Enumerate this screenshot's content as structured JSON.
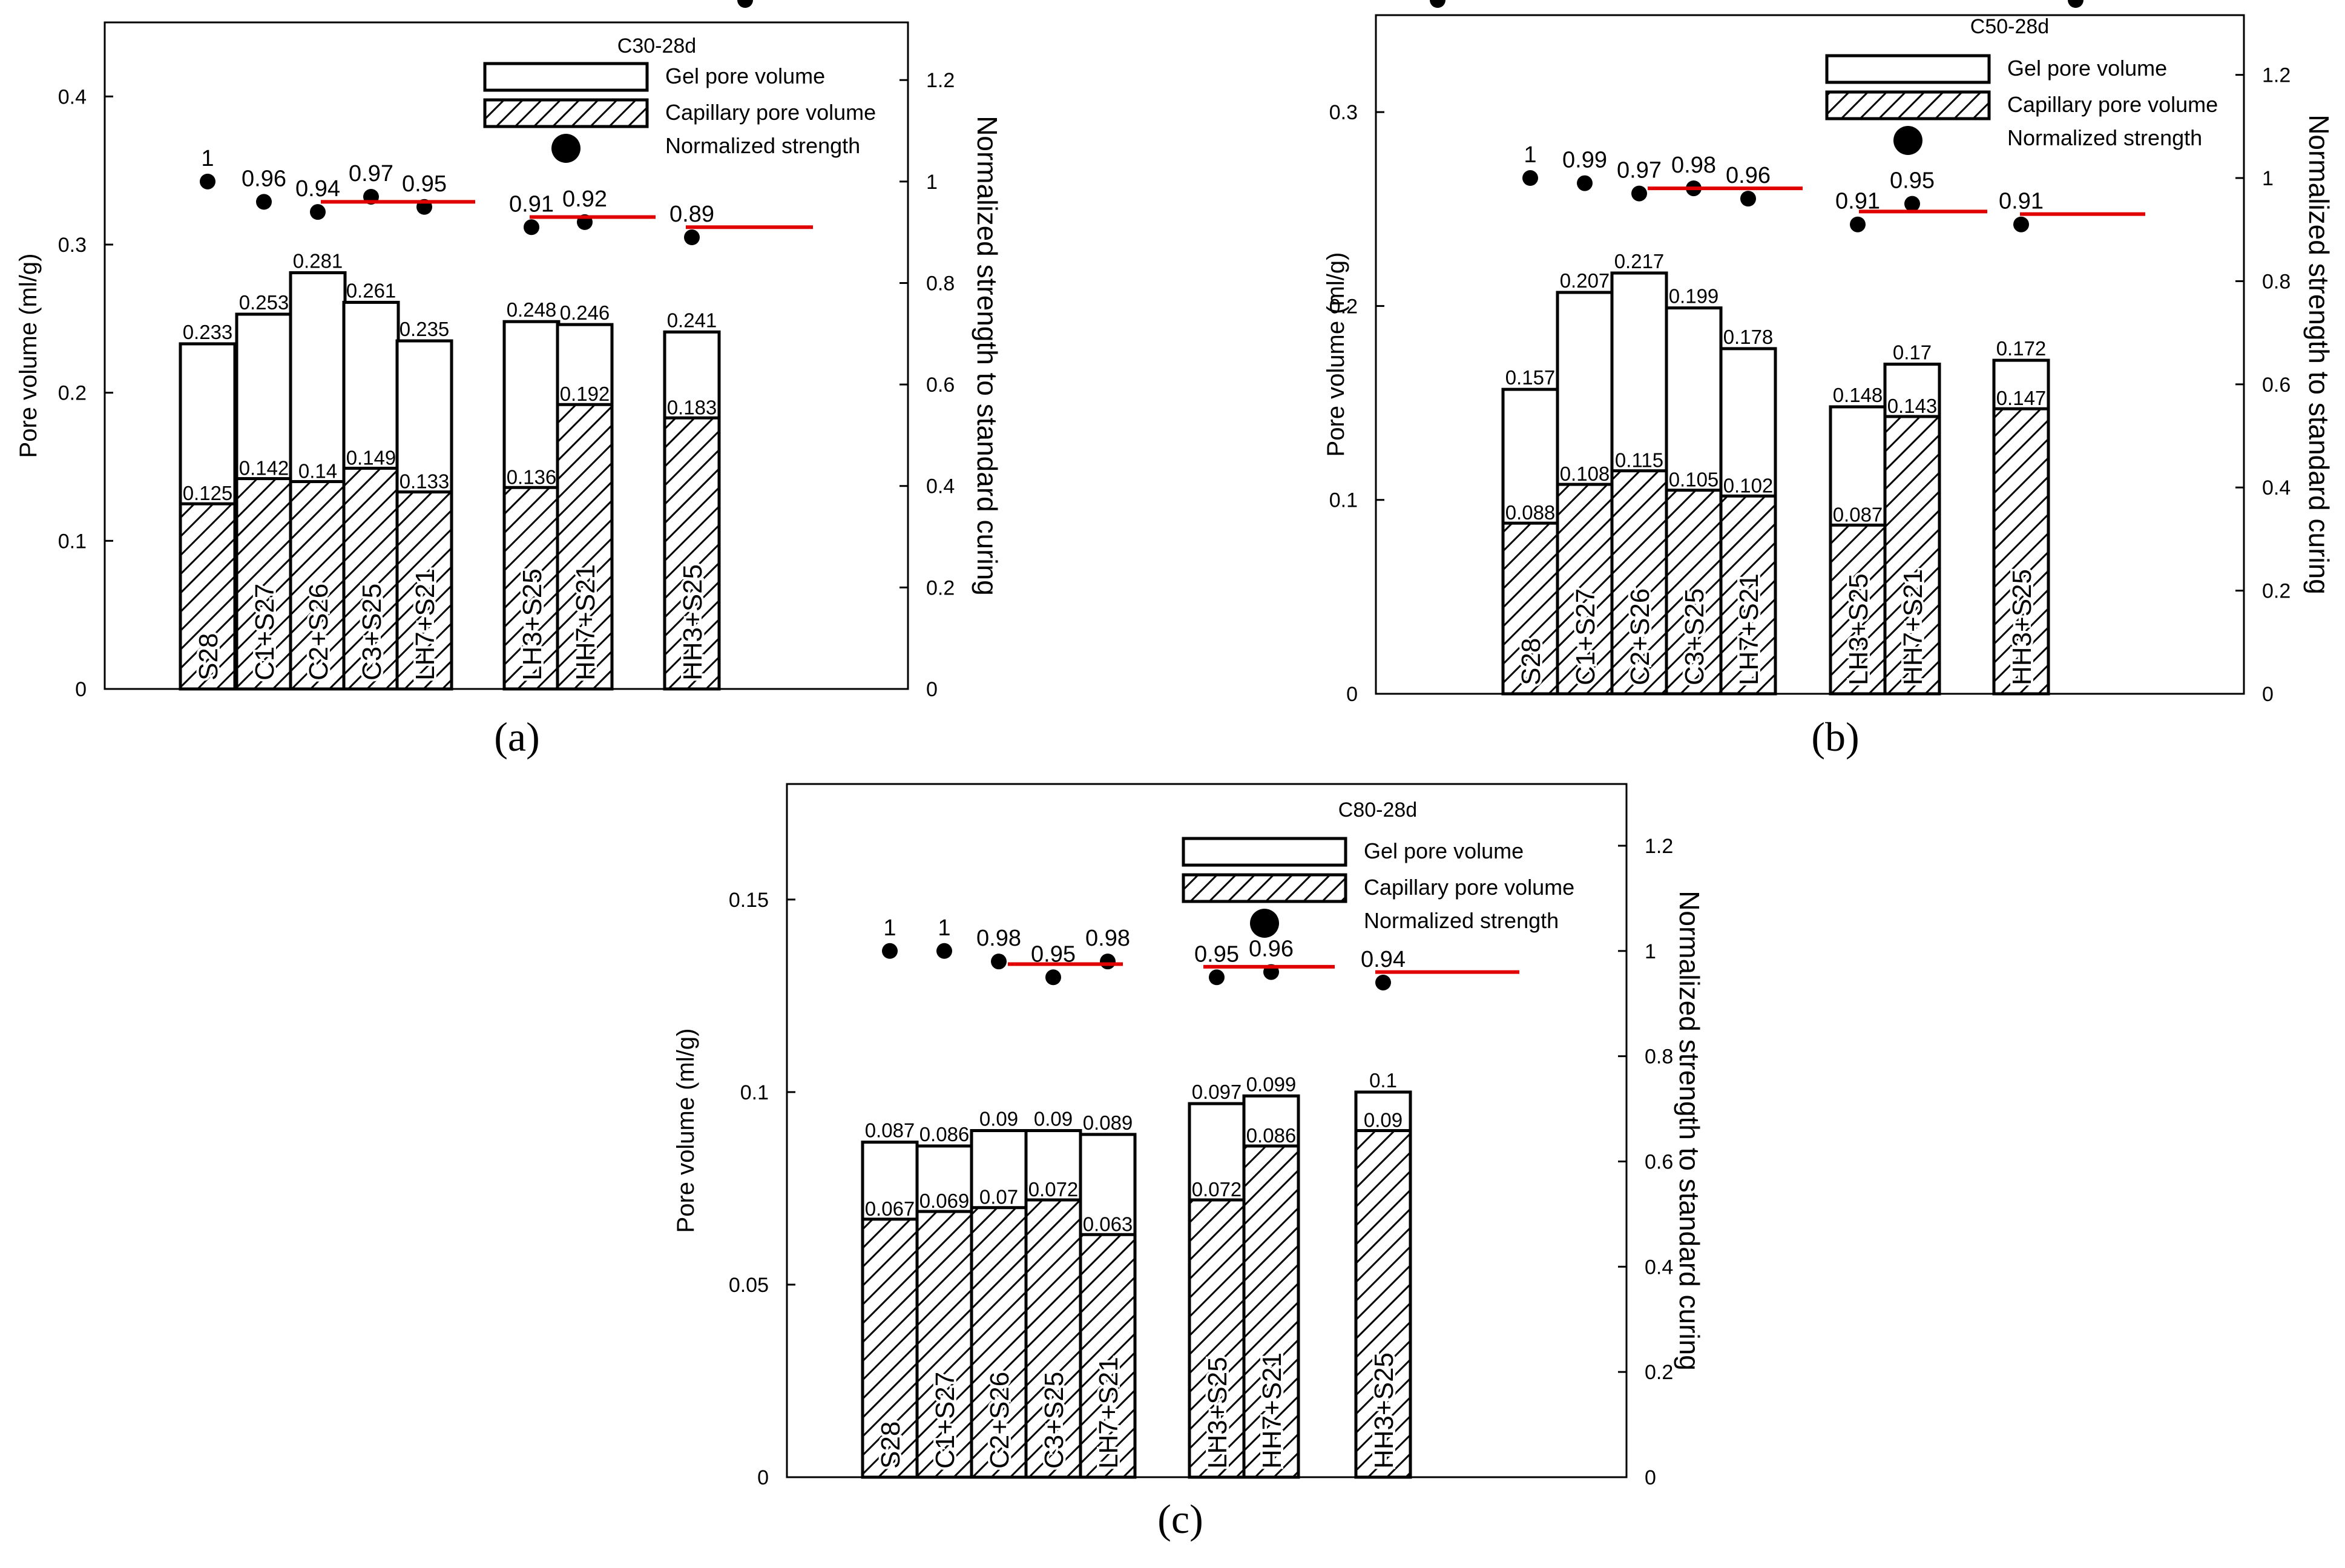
{
  "legend": {
    "gel": "Gel pore volume",
    "capillary": "Capillary pore volume",
    "strength": "Normalized strength"
  },
  "colors": {
    "line": "#e00000",
    "bar_stroke": "#000000",
    "dot": "#000000",
    "bg": "#ffffff"
  },
  "chart_data": [
    {
      "type": "bar",
      "panel": "(a)",
      "title": "C30-28d",
      "ylabel": "Pore volume (ml/g)",
      "y2label": "Normalized strength to standard curing",
      "ylim": [
        0,
        0.45
      ],
      "y2lim": [
        0,
        1.3136
      ],
      "yticks": [
        0,
        0.1,
        0.2,
        0.3,
        0.4
      ],
      "yticklabels": [
        "0",
        "0.1",
        "0.2",
        "0.3",
        "0.4"
      ],
      "y2ticks": [
        0,
        0.2,
        0.4,
        0.6,
        0.8,
        1,
        1.2
      ],
      "y2ticklabels": [
        "0",
        "0.2",
        "0.4",
        "0.6",
        "0.8",
        "1",
        "1.2"
      ],
      "categories": [
        "S28",
        "C1+S27",
        "C2+S26",
        "C3+S25",
        "LH7+S21",
        "LH3+S25",
        "HH7+S21",
        "HH3+S25"
      ],
      "groups": [
        [
          0
        ],
        [
          1,
          2,
          3
        ],
        [
          4,
          5
        ],
        [
          6,
          7
        ]
      ],
      "series": [
        {
          "name": "Gel pore volume",
          "values": [
            0.233,
            0.253,
            0.281,
            0.261,
            0.235,
            0.248,
            0.246,
            0.241
          ],
          "labels": [
            "0.233",
            "0.253",
            "0.281",
            "0.261",
            "0.235",
            "0.248",
            "0.246",
            "0.241"
          ]
        },
        {
          "name": "Capillary pore volume",
          "values": [
            0.125,
            0.142,
            0.14,
            0.149,
            0.133,
            0.136,
            0.192,
            0.183
          ],
          "labels": [
            "0.125",
            "0.142",
            "0.14",
            "0.149",
            "0.133",
            "0.136",
            "0.192",
            "0.183"
          ]
        },
        {
          "name": "Normalized strength",
          "values": [
            1,
            0.96,
            0.94,
            0.97,
            0.95,
            0.91,
            0.92,
            0.89
          ],
          "labels": [
            "1",
            "0.96",
            "0.94",
            "0.97",
            "0.95",
            "0.91",
            "0.92",
            "0.89"
          ]
        }
      ],
      "group_lines": [
        0.96,
        0.93,
        0.91
      ]
    },
    {
      "type": "bar",
      "panel": "(b)",
      "title": "C50-28d",
      "ylabel": "Pore volume (ml/g)",
      "y2label": "Normalized strength to standard curing",
      "ylim": [
        0,
        0.35
      ],
      "y2lim": [
        0,
        1.3158
      ],
      "yticks": [
        0,
        0.1,
        0.2,
        0.3
      ],
      "yticklabels": [
        "0",
        "0.1",
        "0.2",
        "0.3"
      ],
      "y2ticks": [
        0,
        0.2,
        0.4,
        0.6,
        0.8,
        1,
        1.2
      ],
      "y2ticklabels": [
        "0",
        "0.2",
        "0.4",
        "0.6",
        "0.8",
        "1",
        "1.2"
      ],
      "categories": [
        "S28",
        "C1+S27",
        "C2+S26",
        "C3+S25",
        "LH7+S21",
        "LH3+S25",
        "HH7+S21",
        "HH3+S25"
      ],
      "groups": [
        [
          0
        ],
        [
          1,
          2,
          3
        ],
        [
          4,
          5
        ],
        [
          6,
          7
        ]
      ],
      "series": [
        {
          "name": "Gel pore volume",
          "values": [
            0.157,
            0.207,
            0.217,
            0.199,
            0.178,
            0.148,
            0.17,
            0.172
          ],
          "labels": [
            "0.157",
            "0.207",
            "0.217",
            "0.199",
            "0.178",
            "0.148",
            "0.17",
            "0.172"
          ]
        },
        {
          "name": "Capillary pore volume",
          "values": [
            0.088,
            0.108,
            0.115,
            0.105,
            0.102,
            0.087,
            0.143,
            0.147
          ],
          "labels": [
            "0.088",
            "0.108",
            "0.115",
            "0.105",
            "0.102",
            "0.087",
            "0.143",
            "0.147"
          ]
        },
        {
          "name": "Normalized strength",
          "values": [
            1,
            0.99,
            0.97,
            0.98,
            0.96,
            0.91,
            0.95,
            0.91
          ],
          "labels": [
            "1",
            "0.99",
            "0.97",
            "0.98",
            "0.96",
            "0.91",
            "0.95",
            "0.91"
          ]
        }
      ],
      "group_lines": [
        0.98,
        0.935,
        0.93
      ]
    },
    {
      "type": "bar",
      "panel": "(c)",
      "title": "C80-28d",
      "ylabel": "Pore volume (ml/g)",
      "y2label": "Normalized strength to standard curing",
      "ylim": [
        0,
        0.18
      ],
      "y2lim": [
        0,
        1.3173
      ],
      "yticks": [
        0,
        0.05,
        0.1,
        0.15
      ],
      "yticklabels": [
        "0",
        "0.05",
        "0.1",
        "0.15"
      ],
      "y2ticks": [
        0,
        0.2,
        0.4,
        0.6,
        0.8,
        1,
        1.2
      ],
      "y2ticklabels": [
        "0",
        "0.2",
        "0.4",
        "0.6",
        "0.8",
        "1",
        "1.2"
      ],
      "categories": [
        "S28",
        "C1+S27",
        "C2+S26",
        "C3+S25",
        "LH7+S21",
        "LH3+S25",
        "HH7+S21",
        "HH3+S25"
      ],
      "groups": [
        [
          0
        ],
        [
          1,
          2,
          3
        ],
        [
          4,
          5
        ],
        [
          6,
          7
        ]
      ],
      "series": [
        {
          "name": "Gel pore volume",
          "values": [
            0.087,
            0.086,
            0.09,
            0.09,
            0.089,
            0.097,
            0.099,
            0.1
          ],
          "labels": [
            "0.087",
            "0.086",
            "0.09",
            "0.09",
            "0.089",
            "0.097",
            "0.099",
            "0.1"
          ]
        },
        {
          "name": "Capillary pore volume",
          "values": [
            0.067,
            0.069,
            0.07,
            0.072,
            0.063,
            0.072,
            0.086,
            0.09
          ],
          "labels": [
            "0.067",
            "0.069",
            "0.07",
            "0.072",
            "0.063",
            "0.072",
            "0.086",
            "0.09"
          ]
        },
        {
          "name": "Normalized strength",
          "values": [
            1,
            1,
            0.98,
            0.95,
            0.98,
            0.95,
            0.96,
            0.94
          ],
          "labels": [
            "1",
            "1",
            "0.98",
            "0.95",
            "0.98",
            "0.95",
            "0.96",
            "0.94"
          ]
        }
      ],
      "group_lines": [
        0.975,
        0.97,
        0.96
      ]
    }
  ]
}
